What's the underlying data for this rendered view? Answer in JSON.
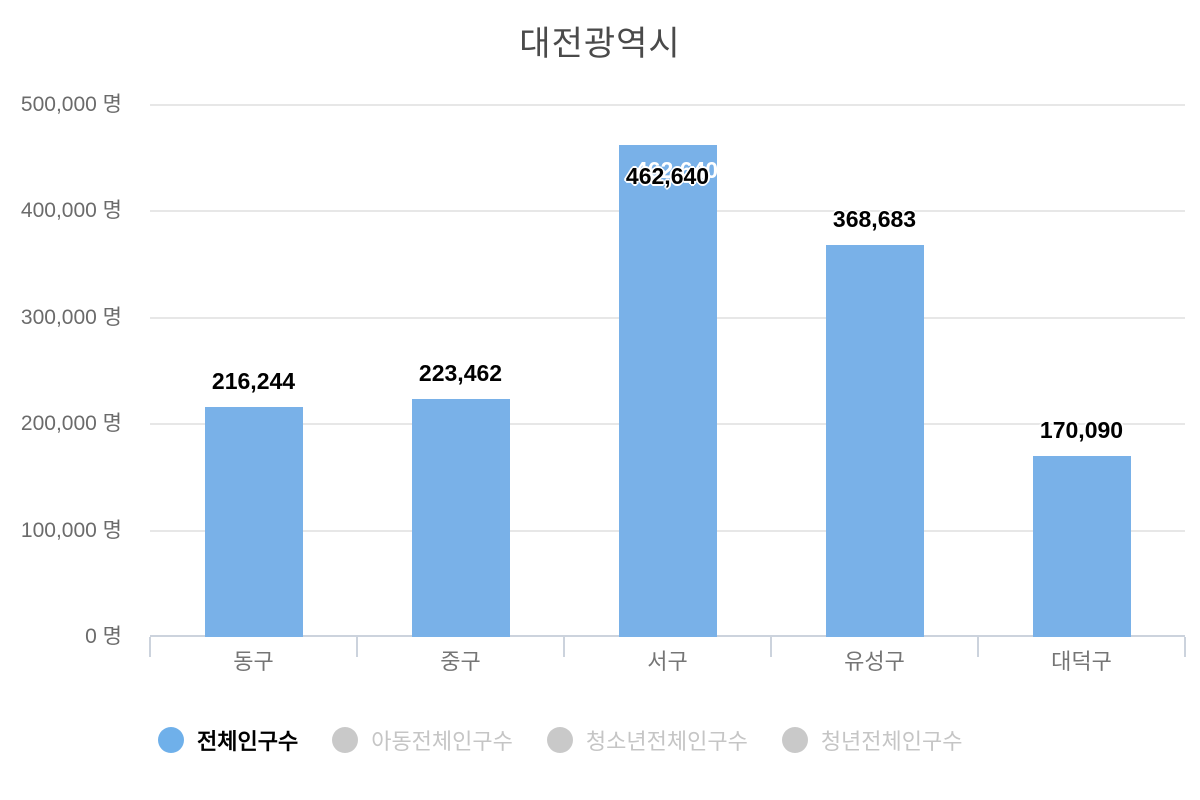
{
  "chart_data": {
    "type": "bar",
    "title": "대전광역시",
    "categories": [
      "동구",
      "중구",
      "서구",
      "유성구",
      "대덕구"
    ],
    "values": [
      216244,
      223462,
      462640,
      368683,
      170090
    ],
    "value_labels": [
      "216,244",
      "223,462",
      "462,640",
      "368,683",
      "170,090"
    ],
    "series": [
      {
        "name": "전체인구수",
        "values": [
          216244,
          223462,
          462640,
          368683,
          170090
        ],
        "visible": true
      },
      {
        "name": "아동전체인구수",
        "visible": false
      },
      {
        "name": "청소년전체인구수",
        "visible": false
      },
      {
        "name": "청년전체인구수",
        "visible": false
      }
    ],
    "unit": "명",
    "xlabel": "",
    "ylabel": "",
    "ylim": [
      0,
      500000
    ],
    "yticks": [
      0,
      100000,
      200000,
      300000,
      400000,
      500000
    ],
    "ytick_labels": [
      "0 명",
      "100,000 명",
      "200,000 명",
      "300,000 명",
      "400,000 명",
      "500,000 명"
    ],
    "grid": "horizontal-on",
    "legend_position": "bottom",
    "overlap_ghost_label": {
      "category_index": 2,
      "text": "462,640",
      "color": "#ffffff"
    },
    "colors": {
      "bar": "#79b1e8",
      "grid": "#e7e7e7",
      "axis": "#ccd3dd",
      "value_label": "#000000",
      "title": "#4a4a4a",
      "tick_text": "#6b6b6b"
    }
  },
  "legend": {
    "items": [
      {
        "label": "전체인구수",
        "active": true,
        "dot_color": "#6fb0ea"
      },
      {
        "label": "아동전체인구수",
        "active": false,
        "dot_color": "#c9c9c9"
      },
      {
        "label": "청소년전체인구수",
        "active": false,
        "dot_color": "#c9c9c9"
      },
      {
        "label": "청년전체인구수",
        "active": false,
        "dot_color": "#c9c9c9"
      }
    ]
  }
}
